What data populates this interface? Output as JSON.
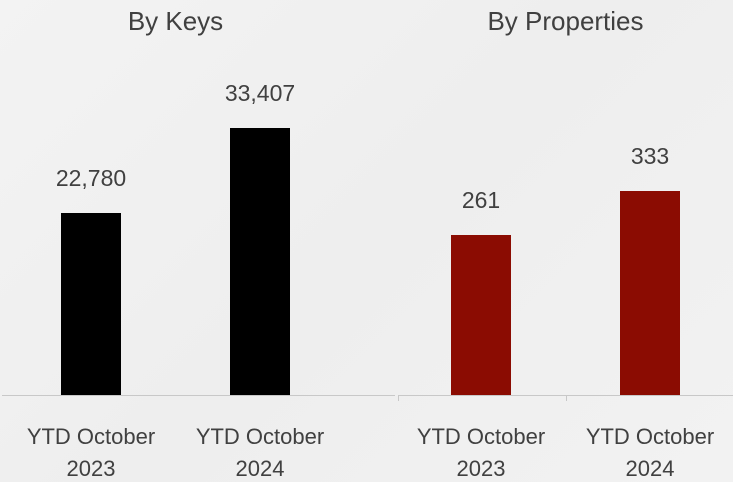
{
  "chart_data": [
    {
      "type": "bar",
      "title": "By Keys",
      "categories": [
        "YTD October 2023",
        "YTD October 2024"
      ],
      "values": [
        22780,
        33407
      ],
      "value_labels": [
        "22,780",
        "33,407"
      ],
      "color": "#000000"
    },
    {
      "type": "bar",
      "title": "By Properties",
      "categories": [
        "YTD October 2023",
        "YTD October 2024"
      ],
      "values": [
        261,
        333
      ],
      "color": "#8b0c02"
    }
  ]
}
